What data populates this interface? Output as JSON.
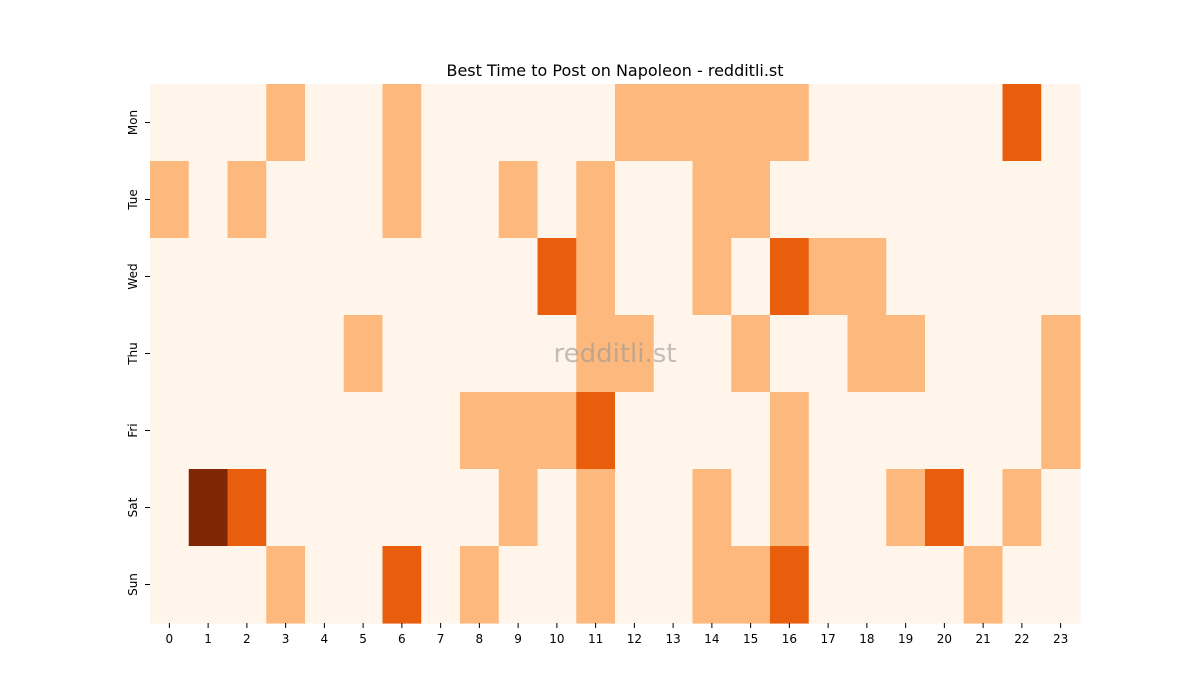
{
  "chart_data": {
    "type": "heatmap",
    "title": "Best Time to Post on Napoleon - redditli.st",
    "watermark": "redditli.st",
    "xlabel": "",
    "ylabel": "",
    "x_labels": [
      "0",
      "1",
      "2",
      "3",
      "4",
      "5",
      "6",
      "7",
      "8",
      "9",
      "10",
      "11",
      "12",
      "13",
      "14",
      "15",
      "16",
      "17",
      "18",
      "19",
      "20",
      "21",
      "22",
      "23"
    ],
    "y_labels": [
      "Mon",
      "Tue",
      "Wed",
      "Thu",
      "Fri",
      "Sat",
      "Sun"
    ],
    "values": [
      [
        0,
        0,
        0,
        1,
        0,
        0,
        1,
        0,
        0,
        0,
        0,
        0,
        1,
        1,
        1,
        1,
        1,
        0,
        0,
        0,
        0,
        0,
        2,
        0
      ],
      [
        1,
        0,
        1,
        0,
        0,
        0,
        1,
        0,
        0,
        1,
        0,
        1,
        0,
        0,
        1,
        1,
        0,
        0,
        0,
        0,
        0,
        0,
        0,
        0
      ],
      [
        0,
        0,
        0,
        0,
        0,
        0,
        0,
        0,
        0,
        0,
        2,
        1,
        0,
        0,
        1,
        0,
        2,
        1,
        1,
        0,
        0,
        0,
        0,
        0
      ],
      [
        0,
        0,
        0,
        0,
        0,
        1,
        0,
        0,
        0,
        0,
        0,
        1,
        1,
        0,
        0,
        1,
        0,
        0,
        1,
        1,
        0,
        0,
        0,
        1
      ],
      [
        0,
        0,
        0,
        0,
        0,
        0,
        0,
        0,
        1,
        1,
        1,
        2,
        0,
        0,
        0,
        0,
        1,
        0,
        0,
        0,
        0,
        0,
        0,
        1
      ],
      [
        0,
        3,
        2,
        0,
        0,
        0,
        0,
        0,
        0,
        1,
        0,
        1,
        0,
        0,
        1,
        0,
        1,
        0,
        0,
        1,
        2,
        0,
        1,
        0
      ],
      [
        0,
        0,
        0,
        1,
        0,
        0,
        2,
        0,
        1,
        0,
        0,
        1,
        0,
        0,
        1,
        1,
        2,
        0,
        0,
        0,
        0,
        1,
        0,
        0
      ]
    ],
    "colormap": {
      "0": "#fff5eb",
      "1": "#fdb97d",
      "2": "#e95e0d",
      "3": "#7f2704"
    },
    "colorbar": false,
    "grid": false
  }
}
